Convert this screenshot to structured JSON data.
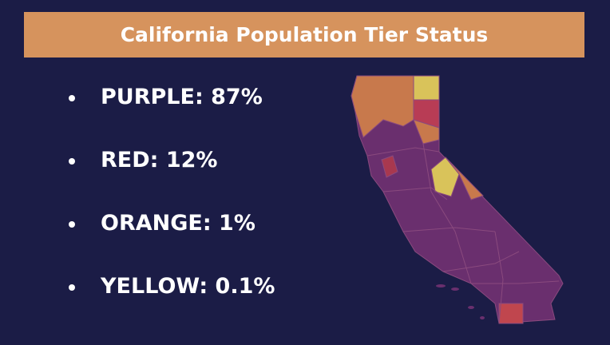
{
  "title": "California Population Tier Status",
  "items": [
    "PURPLE: 87%",
    "RED: 12%",
    "ORANGE: 1%",
    "YELLOW: 0.1%"
  ]
}
